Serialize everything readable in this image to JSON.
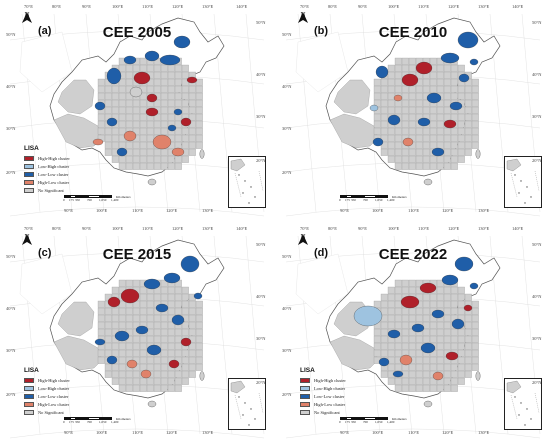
{
  "legend": {
    "title": "LISA",
    "items": [
      {
        "label": "High-High cluster",
        "color": "#b0202a"
      },
      {
        "label": "Low-High cluster",
        "color": "#9ec3e0"
      },
      {
        "label": "Low-Low cluster",
        "color": "#1f5ea8"
      },
      {
        "label": "High-Low cluster",
        "color": "#e0826a"
      },
      {
        "label": "No Significant",
        "color": "#cfcfcf"
      }
    ]
  },
  "scale": {
    "labels": [
      "0",
      "175",
      "350",
      "700",
      "1,050",
      "1,400"
    ],
    "unit": "Kilometers"
  },
  "longitude_labels_top": [
    "70°E",
    "80°E",
    "90°E",
    "100°E",
    "110°E",
    "120°E",
    "130°E",
    "140°E"
  ],
  "longitude_labels_bottom": [
    "90°E",
    "100°E",
    "110°E",
    "120°E",
    "130°E"
  ],
  "latitude_labels_left": [
    "50°N",
    "40°N",
    "30°N",
    "20°N"
  ],
  "latitude_labels_right": [
    "50°N",
    "40°N",
    "30°N",
    "20°N"
  ],
  "north_label": "N",
  "colors": {
    "high_high": "#b0202a",
    "low_high": "#9ec3e0",
    "low_low": "#1f5ea8",
    "high_low": "#e0826a",
    "not_significant": "#cfcfcf",
    "no_data": "#ffffff"
  },
  "panels": [
    {
      "label": "(a)",
      "title": "CEE 2005",
      "has_legend": true
    },
    {
      "label": "(b)",
      "title": "CEE 2010",
      "has_legend": false
    },
    {
      "label": "(c)",
      "title": "CEE 2015",
      "has_legend": true
    },
    {
      "label": "(d)",
      "title": "CEE 2022",
      "has_legend": true
    }
  ]
}
